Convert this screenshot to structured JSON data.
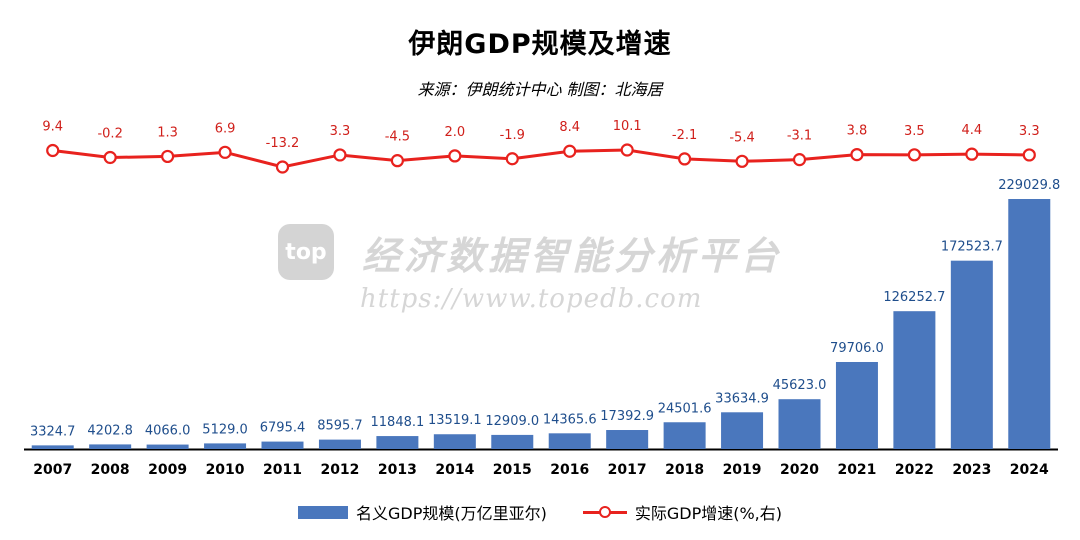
{
  "header": {
    "title": "伊朗GDP规模及增速",
    "subtitle": "来源：伊朗统计中心  制图：北海居"
  },
  "watermark": {
    "logo_text": "top",
    "text": "经济数据智能分析平台",
    "url": "https://www.topedb.com"
  },
  "legend": {
    "bar_label": "名义GDP规模(万亿里亚尔)",
    "line_label": "实际GDP增速(%,右)"
  },
  "colors": {
    "bar": "#4a77bd",
    "line": "#e8221e",
    "bar_label": "#1f4e8c",
    "line_label": "#d0201b"
  },
  "chart_data": {
    "type": "bar",
    "categories": [
      "2007",
      "2008",
      "2009",
      "2010",
      "2011",
      "2012",
      "2013",
      "2014",
      "2015",
      "2016",
      "2017",
      "2018",
      "2019",
      "2020",
      "2021",
      "2022",
      "2023",
      "2024"
    ],
    "series": [
      {
        "name": "名义GDP规模(万亿里亚尔)",
        "type": "bar",
        "axis": "left",
        "values": [
          3324.7,
          4202.8,
          4066.0,
          5129.0,
          6795.4,
          8595.7,
          11848.1,
          13519.1,
          12909.0,
          14365.6,
          17392.9,
          24501.6,
          33634.9,
          45623.0,
          79706.0,
          126252.7,
          172523.7,
          229029.8
        ],
        "labels": [
          "3324.7",
          "4202.8",
          "4066.0",
          "5129.0",
          "6795.4",
          "8595.7",
          "11848.1",
          "13519.1",
          "12909.0",
          "14365.6",
          "17392.9",
          "24501.6",
          "33634.9",
          "45623.0",
          "79706.0",
          "126252.7",
          "172523.7",
          "229029.8"
        ]
      },
      {
        "name": "实际GDP增速(%,右)",
        "type": "line",
        "axis": "right",
        "values": [
          9.4,
          -0.2,
          1.3,
          6.9,
          -13.2,
          3.3,
          -4.5,
          2.0,
          -1.9,
          8.4,
          10.1,
          -2.1,
          -5.4,
          -3.1,
          3.8,
          3.5,
          4.4,
          3.3
        ],
        "labels": [
          "9.4",
          "-0.2",
          "1.3",
          "6.9",
          "-13.2",
          "3.3",
          "-4.5",
          "2.0",
          "-1.9",
          "8.4",
          "10.1",
          "-2.1",
          "-5.4",
          "-3.1",
          "3.8",
          "3.5",
          "4.4",
          "3.3"
        ]
      }
    ],
    "ylim": [
      0,
      229029.8
    ],
    "y2lim": [
      -13.2,
      10.1
    ],
    "legend_position": "bottom",
    "grid": false
  }
}
